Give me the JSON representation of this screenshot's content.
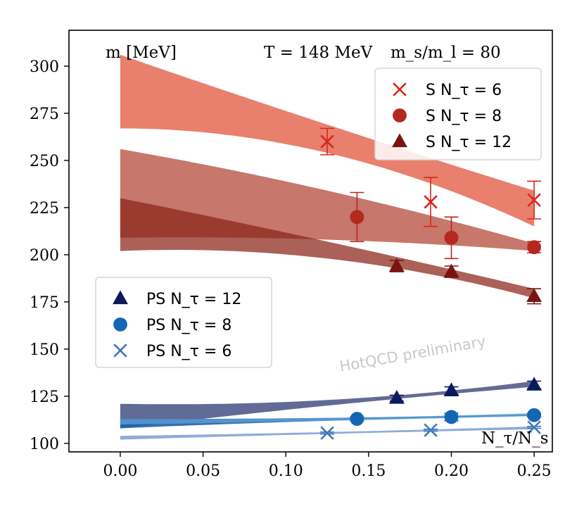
{
  "chart_data": {
    "type": "scatter",
    "title": "",
    "xlabel": "N_τ/N_s",
    "ylabel": "m [MeV]",
    "xlim": [
      -0.031,
      0.261
    ],
    "ylim": [
      95.5,
      319
    ],
    "x_ticks": [
      0.0,
      0.05,
      0.1,
      0.15,
      0.2,
      0.25
    ],
    "x_tick_labels": [
      "0.00",
      "0.05",
      "0.10",
      "0.15",
      "0.20",
      "0.25"
    ],
    "y_ticks": [
      100,
      125,
      150,
      175,
      200,
      225,
      250,
      275,
      300
    ],
    "y_tick_labels": [
      "100",
      "125",
      "150",
      "175",
      "200",
      "225",
      "250",
      "275",
      "300"
    ],
    "annotations": {
      "ylabel_text": "m [MeV]",
      "temperature": "T = 148 MeV",
      "mass_ratio": "m_s/m_l = 80",
      "xlabel_text": "N_τ/N_s",
      "watermark": "HotQCD preliminary"
    },
    "legend_upper": {
      "placement": "top-right",
      "entries": [
        {
          "label": "S N_τ = 6",
          "marker": "x",
          "color": "#d5281b"
        },
        {
          "label": "S N_τ = 8",
          "marker": "circle",
          "color": "#b5281f"
        },
        {
          "label": "S N_τ = 12",
          "marker": "triangle",
          "color": "#7a1410"
        }
      ]
    },
    "legend_lower": {
      "placement": "center-left",
      "entries": [
        {
          "label": "PS N_τ = 12",
          "marker": "triangle",
          "color": "#0a1a5c"
        },
        {
          "label": "PS N_τ = 8",
          "marker": "circle",
          "color": "#1565b5"
        },
        {
          "label": "PS N_τ = 6",
          "marker": "x",
          "color": "#4275bd"
        }
      ]
    },
    "series": [
      {
        "name": "S N_τ = 6",
        "marker": "x",
        "color": "#d5281b",
        "points": [
          {
            "x": 0.125,
            "y": 260,
            "err": 7
          },
          {
            "x": 0.1875,
            "y": 228,
            "err": 13
          },
          {
            "x": 0.25,
            "y": 229,
            "err": 10
          }
        ]
      },
      {
        "name": "S N_τ = 8",
        "marker": "circle",
        "color": "#b5281f",
        "points": [
          {
            "x": 0.143,
            "y": 220,
            "err": 13
          },
          {
            "x": 0.2,
            "y": 209,
            "err": 11
          },
          {
            "x": 0.25,
            "y": 204,
            "err": 3
          }
        ]
      },
      {
        "name": "S N_τ = 12",
        "marker": "triangle",
        "color": "#7a1410",
        "points": [
          {
            "x": 0.167,
            "y": 194,
            "err": 3
          },
          {
            "x": 0.2,
            "y": 191,
            "err": 3
          },
          {
            "x": 0.25,
            "y": 178,
            "err": 4
          }
        ]
      },
      {
        "name": "PS N_τ = 12",
        "marker": "triangle",
        "color": "#0a1a5c",
        "points": [
          {
            "x": 0.167,
            "y": 124,
            "err": 1.5
          },
          {
            "x": 0.2,
            "y": 128,
            "err": 2
          },
          {
            "x": 0.25,
            "y": 131,
            "err": 2
          }
        ]
      },
      {
        "name": "PS N_τ = 8",
        "marker": "circle",
        "color": "#1565b5",
        "points": [
          {
            "x": 0.143,
            "y": 113,
            "err": 1
          },
          {
            "x": 0.2,
            "y": 114,
            "err": 2
          },
          {
            "x": 0.25,
            "y": 115,
            "err": 1
          }
        ]
      },
      {
        "name": "PS N_τ = 6",
        "marker": "x",
        "color": "#4275bd",
        "points": [
          {
            "x": 0.125,
            "y": 105.5,
            "err": 0.5
          },
          {
            "x": 0.1875,
            "y": 107,
            "err": 0.5
          },
          {
            "x": 0.25,
            "y": 108.5,
            "err": 0.5
          }
        ]
      }
    ],
    "bands": [
      {
        "color": "#e8806d",
        "opacity": 1.0,
        "x": [
          0.0,
          0.125,
          0.25
        ],
        "lower": [
          267,
          254,
          215
        ],
        "upper": [
          306,
          269,
          234
        ]
      },
      {
        "color": "#c7776b",
        "opacity": 1.0,
        "x": [
          0.0,
          0.125,
          0.25
        ],
        "lower": [
          209,
          208,
          202
        ],
        "upper": [
          256,
          234,
          206
        ]
      },
      {
        "color": "#8b2418",
        "opacity": 0.72,
        "x": [
          0.0,
          0.125,
          0.25
        ],
        "lower": [
          202,
          198,
          177
        ],
        "upper": [
          230,
          207,
          182
        ]
      },
      {
        "color": "#4c5587",
        "opacity": 0.88,
        "x": [
          0.0,
          0.125,
          0.25
        ],
        "lower": [
          108,
          120,
          130
        ],
        "upper": [
          121,
          123,
          133
        ]
      },
      {
        "color": "#1f5fa8",
        "opacity": 0.9,
        "x": [
          0.0,
          0.125,
          0.25
        ],
        "lower": [
          108,
          112,
          114.5
        ],
        "upper": [
          113,
          113.5,
          115.5
        ]
      },
      {
        "color": "#5e9fd4",
        "opacity": 0.8,
        "x": [
          0.0,
          0.125,
          0.25
        ],
        "lower": [
          110,
          112,
          114.5
        ],
        "upper": [
          113,
          113.5,
          116
        ]
      },
      {
        "color": "#8fabd8",
        "opacity": 1.0,
        "x": [
          0.0,
          0.125,
          0.25
        ],
        "lower": [
          102,
          105,
          107.5
        ],
        "upper": [
          104,
          106,
          109
        ]
      }
    ]
  }
}
